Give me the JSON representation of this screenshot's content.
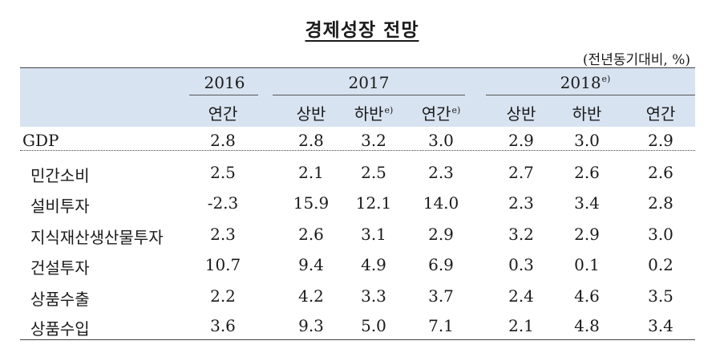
{
  "title": "경제성장 전망",
  "unit": "(전년동기대비, %)",
  "header": {
    "year_2016": "2016",
    "year_2017": "2017",
    "year_2018": "2018",
    "year_2018_sup": "e)",
    "sub_2016": "연간",
    "sub_2017": [
      {
        "label": "상반",
        "sup": ""
      },
      {
        "label": "하반",
        "sup": "e)"
      },
      {
        "label": "연간",
        "sup": "e)"
      }
    ],
    "sub_2018": [
      {
        "label": "상반",
        "sup": ""
      },
      {
        "label": "하반",
        "sup": ""
      },
      {
        "label": "연간",
        "sup": ""
      }
    ]
  },
  "rows": [
    {
      "label": "GDP",
      "values": [
        "2.8",
        "2.8",
        "3.2",
        "3.0",
        "2.9",
        "3.0",
        "2.9"
      ]
    },
    {
      "label": "민간소비",
      "values": [
        "2.5",
        "2.1",
        "2.5",
        "2.3",
        "2.7",
        "2.6",
        "2.6"
      ]
    },
    {
      "label": "설비투자",
      "values": [
        "-2.3",
        "15.9",
        "12.1",
        "14.0",
        "2.3",
        "3.4",
        "2.8"
      ]
    },
    {
      "label": "지식재산생산물투자",
      "values": [
        "2.3",
        "2.6",
        "3.1",
        "2.9",
        "3.2",
        "2.9",
        "3.0"
      ]
    },
    {
      "label": "건설투자",
      "values": [
        "10.7",
        "9.4",
        "4.9",
        "6.9",
        "0.3",
        "0.1",
        "0.2"
      ]
    },
    {
      "label": "상품수출",
      "values": [
        "2.2",
        "4.2",
        "3.3",
        "3.7",
        "2.4",
        "4.6",
        "3.5"
      ]
    },
    {
      "label": "상품수입",
      "values": [
        "3.6",
        "9.3",
        "5.0",
        "7.1",
        "2.1",
        "4.8",
        "3.4"
      ]
    }
  ]
}
